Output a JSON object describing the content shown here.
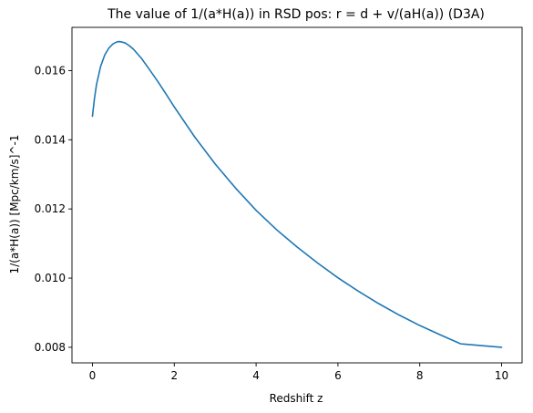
{
  "chart_data": {
    "type": "line",
    "title": "The value of 1/(a*H(a)) in RSD pos: r = d + v/(aH(a)) (D3A)",
    "xlabel": "Redshift z",
    "ylabel": "1/(a*H(a)) [Mpc/km/s]^-1",
    "xlim": [
      -0.5,
      10.5
    ],
    "ylim": [
      0.00755,
      0.01725
    ],
    "xticks": [
      0,
      2,
      4,
      6,
      8,
      10
    ],
    "xtick_labels": [
      "0",
      "2",
      "4",
      "6",
      "8",
      "10"
    ],
    "yticks": [
      0.008,
      0.01,
      0.012,
      0.014,
      0.016
    ],
    "ytick_labels": [
      "0.008",
      "0.010",
      "0.012",
      "0.014",
      "0.016"
    ],
    "grid": false,
    "series": [
      {
        "color": "#1f77b4",
        "x": [
          0,
          0.05,
          0.1,
          0.2,
          0.3,
          0.4,
          0.5,
          0.6,
          0.65,
          0.7,
          0.8,
          0.9,
          1.0,
          1.2,
          1.4,
          1.6,
          1.8,
          2.0,
          2.5,
          3.0,
          3.5,
          4.0,
          4.5,
          5.0,
          5.5,
          6.0,
          6.5,
          7.0,
          7.5,
          8.0,
          8.5,
          9.0,
          9.5,
          10.0
        ],
        "y": [
          0.01468,
          0.0152,
          0.0156,
          0.01612,
          0.01645,
          0.01665,
          0.01677,
          0.01683,
          0.01684,
          0.01683,
          0.0168,
          0.01672,
          0.01662,
          0.01635,
          0.01602,
          0.01568,
          0.01532,
          0.01495,
          0.01408,
          0.0133,
          0.0126,
          0.01196,
          0.0114,
          0.0109,
          0.01044,
          0.01001,
          0.00962,
          0.00926,
          0.00893,
          0.00863,
          0.00836,
          0.0081,
          0.00785,
          0.008
        ]
      }
    ]
  }
}
